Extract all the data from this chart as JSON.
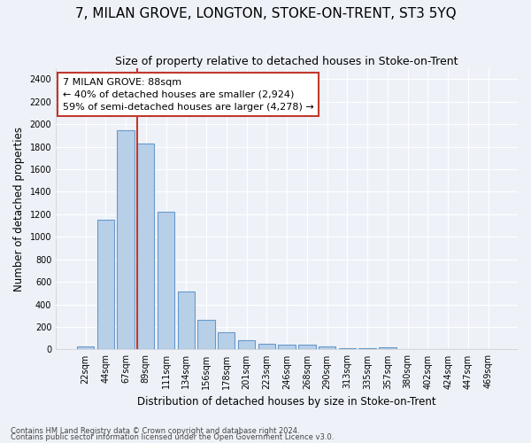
{
  "title": "7, MILAN GROVE, LONGTON, STOKE-ON-TRENT, ST3 5YQ",
  "subtitle": "Size of property relative to detached houses in Stoke-on-Trent",
  "xlabel": "Distribution of detached houses by size in Stoke-on-Trent",
  "ylabel": "Number of detached properties",
  "footnote1": "Contains HM Land Registry data © Crown copyright and database right 2024.",
  "footnote2": "Contains public sector information licensed under the Open Government Licence v3.0.",
  "bar_labels": [
    "22sqm",
    "44sqm",
    "67sqm",
    "89sqm",
    "111sqm",
    "134sqm",
    "156sqm",
    "178sqm",
    "201sqm",
    "223sqm",
    "246sqm",
    "268sqm",
    "290sqm",
    "313sqm",
    "335sqm",
    "357sqm",
    "380sqm",
    "402sqm",
    "424sqm",
    "447sqm",
    "469sqm"
  ],
  "bar_values": [
    30,
    1150,
    1950,
    1830,
    1220,
    515,
    265,
    150,
    80,
    50,
    45,
    40,
    25,
    15,
    10,
    20,
    5,
    5,
    5,
    5,
    5
  ],
  "bar_color": "#b8cfe8",
  "bar_edge_color": "#6699cc",
  "property_label": "7 MILAN GROVE: 88sqm",
  "annotation_line1": "← 40% of detached houses are smaller (2,924)",
  "annotation_line2": "59% of semi-detached houses are larger (4,278) →",
  "vline_color": "#c0392b",
  "vline_x_index": 3,
  "annotation_box_color": "#c0392b",
  "ylim": [
    0,
    2500
  ],
  "yticks": [
    0,
    200,
    400,
    600,
    800,
    1000,
    1200,
    1400,
    1600,
    1800,
    2000,
    2200,
    2400
  ],
  "background_color": "#eef2f8",
  "grid_color": "#ffffff",
  "title_fontsize": 11,
  "subtitle_fontsize": 9,
  "axis_label_fontsize": 8.5,
  "tick_fontsize": 7,
  "annotation_fontsize": 8,
  "footnote_fontsize": 6
}
